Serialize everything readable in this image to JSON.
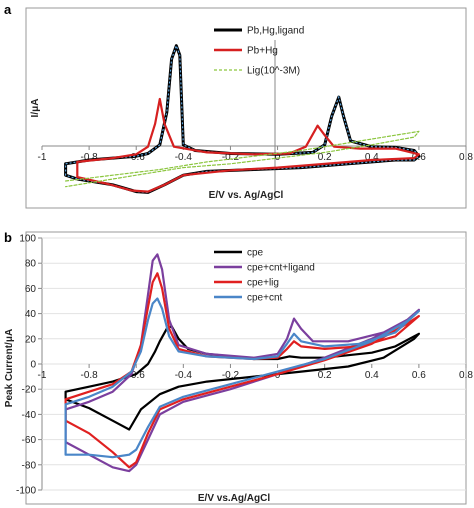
{
  "figure": {
    "panel_a_letter": "a",
    "panel_b_letter": "b"
  },
  "chart_data": [
    {
      "type": "line",
      "panel": "a",
      "xlabel": "E/V vs. Ag/AgCl",
      "ylabel": "I/μA",
      "xlim": [
        -1,
        0.8
      ],
      "xticks": [
        -1,
        -0.8,
        -0.6,
        -0.4,
        -0.2,
        0,
        0.2,
        0.4,
        0.6,
        0.8
      ],
      "xtick_labels": [
        "-1",
        "-0.8",
        "-0.6",
        "-0.4",
        "-0.2",
        "0",
        "0.2",
        "0.4",
        "0.6",
        "0.8"
      ],
      "y_tick_labels_shown": false,
      "ylim": [
        -1.1,
        3.1
      ],
      "legend_position": "top-right",
      "series": [
        {
          "name": "Pb,Hg,ligand",
          "color": "#000000",
          "points": [
            [
              -0.9,
              -0.15
            ],
            [
              -0.8,
              -0.05
            ],
            [
              -0.7,
              0.0
            ],
            [
              -0.6,
              0.05
            ],
            [
              -0.55,
              0.12
            ],
            [
              -0.5,
              0.35
            ],
            [
              -0.47,
              1.2
            ],
            [
              -0.45,
              2.6
            ],
            [
              -0.43,
              2.95
            ],
            [
              -0.415,
              2.7
            ],
            [
              -0.4,
              0.35
            ],
            [
              -0.35,
              0.2
            ],
            [
              -0.2,
              0.12
            ],
            [
              0.0,
              0.1
            ],
            [
              0.15,
              0.15
            ],
            [
              0.2,
              0.35
            ],
            [
              0.23,
              1.1
            ],
            [
              0.26,
              1.6
            ],
            [
              0.28,
              1.1
            ],
            [
              0.31,
              0.45
            ],
            [
              0.4,
              0.3
            ],
            [
              0.5,
              0.28
            ],
            [
              0.58,
              0.2
            ],
            [
              0.6,
              0.05
            ],
            [
              0.58,
              -0.05
            ],
            [
              0.5,
              -0.05
            ],
            [
              0.3,
              -0.15
            ],
            [
              0.1,
              -0.25
            ],
            [
              -0.1,
              -0.3
            ],
            [
              -0.3,
              -0.35
            ],
            [
              -0.4,
              -0.45
            ],
            [
              -0.48,
              -0.7
            ],
            [
              -0.55,
              -0.9
            ],
            [
              -0.6,
              -0.88
            ],
            [
              -0.7,
              -0.7
            ],
            [
              -0.85,
              -0.55
            ],
            [
              -0.9,
              -0.45
            ],
            [
              -0.9,
              -0.15
            ]
          ]
        },
        {
          "name": "Pb+Hg",
          "color": "#d62020",
          "points": [
            [
              -0.85,
              -0.1
            ],
            [
              -0.7,
              0.0
            ],
            [
              -0.6,
              0.1
            ],
            [
              -0.55,
              0.3
            ],
            [
              -0.52,
              0.9
            ],
            [
              -0.5,
              1.55
            ],
            [
              -0.48,
              0.9
            ],
            [
              -0.44,
              0.3
            ],
            [
              -0.3,
              0.15
            ],
            [
              -0.1,
              0.1
            ],
            [
              0.05,
              0.12
            ],
            [
              0.12,
              0.3
            ],
            [
              0.17,
              0.85
            ],
            [
              0.2,
              0.6
            ],
            [
              0.24,
              0.3
            ],
            [
              0.35,
              0.25
            ],
            [
              0.5,
              0.25
            ],
            [
              0.6,
              0.1
            ],
            [
              0.58,
              0.0
            ],
            [
              0.4,
              -0.05
            ],
            [
              0.2,
              -0.15
            ],
            [
              0.0,
              -0.25
            ],
            [
              -0.2,
              -0.32
            ],
            [
              -0.4,
              -0.45
            ],
            [
              -0.48,
              -0.7
            ],
            [
              -0.55,
              -0.88
            ],
            [
              -0.62,
              -0.85
            ],
            [
              -0.72,
              -0.68
            ],
            [
              -0.85,
              -0.5
            ],
            [
              -0.85,
              -0.1
            ]
          ]
        },
        {
          "name": "Lig(10^-3M)",
          "color": "#8cc63f",
          "points": [
            [
              -0.9,
              -0.6
            ],
            [
              -0.7,
              -0.45
            ],
            [
              -0.5,
              -0.3
            ],
            [
              -0.3,
              -0.1
            ],
            [
              -0.1,
              0.05
            ],
            [
              0.1,
              0.2
            ],
            [
              0.3,
              0.4
            ],
            [
              0.5,
              0.6
            ],
            [
              0.6,
              0.7
            ],
            [
              0.58,
              0.55
            ],
            [
              0.4,
              0.35
            ],
            [
              0.2,
              0.15
            ],
            [
              0.0,
              0.0
            ],
            [
              -0.2,
              -0.15
            ],
            [
              -0.4,
              -0.25
            ],
            [
              -0.6,
              -0.45
            ],
            [
              -0.9,
              -0.75
            ]
          ]
        }
      ]
    },
    {
      "type": "line",
      "panel": "b",
      "xlabel": "E/V vs.Ag/AgCl",
      "ylabel": "Peak Current/μA",
      "xlim": [
        -1,
        0.8
      ],
      "ylim": [
        -100,
        100
      ],
      "xticks": [
        -1,
        -0.8,
        -0.6,
        -0.4,
        -0.2,
        0,
        0.2,
        0.4,
        0.6,
        0.8
      ],
      "xtick_labels": [
        "-1",
        "-0.8",
        "-0.6",
        "-0.4",
        "-0.2",
        "0",
        "0.2",
        "0.4",
        "0.6",
        "0.8"
      ],
      "yticks": [
        -100,
        -80,
        -60,
        -40,
        -20,
        0,
        20,
        40,
        60,
        80,
        100
      ],
      "ytick_labels": [
        "-100",
        "-80",
        "-60",
        "-40",
        "-20",
        "0",
        "20",
        "40",
        "60",
        "80",
        "100"
      ],
      "legend_position": "top-right",
      "series": [
        {
          "name": "cpe",
          "color": "#000000",
          "points": [
            [
              -0.9,
              -22
            ],
            [
              -0.8,
              -18
            ],
            [
              -0.7,
              -14
            ],
            [
              -0.6,
              -8
            ],
            [
              -0.55,
              0
            ],
            [
              -0.52,
              10
            ],
            [
              -0.5,
              18
            ],
            [
              -0.47,
              28
            ],
            [
              -0.45,
              30
            ],
            [
              -0.42,
              20
            ],
            [
              -0.38,
              12
            ],
            [
              -0.3,
              8
            ],
            [
              -0.1,
              4
            ],
            [
              0.0,
              4
            ],
            [
              0.05,
              6
            ],
            [
              0.1,
              5
            ],
            [
              0.2,
              5
            ],
            [
              0.4,
              9
            ],
            [
              0.5,
              14
            ],
            [
              0.6,
              24
            ],
            [
              0.58,
              20
            ],
            [
              0.45,
              5
            ],
            [
              0.3,
              -2
            ],
            [
              0.1,
              -6
            ],
            [
              -0.1,
              -10
            ],
            [
              -0.3,
              -14
            ],
            [
              -0.42,
              -18
            ],
            [
              -0.5,
              -24
            ],
            [
              -0.58,
              -36
            ],
            [
              -0.63,
              -52
            ],
            [
              -0.7,
              -45
            ],
            [
              -0.8,
              -35
            ],
            [
              -0.9,
              -28
            ],
            [
              -0.9,
              -22
            ]
          ]
        },
        {
          "name": "cpe+cnt+ligand",
          "color": "#7b3f9e",
          "points": [
            [
              -0.9,
              -36
            ],
            [
              -0.8,
              -30
            ],
            [
              -0.7,
              -22
            ],
            [
              -0.62,
              -8
            ],
            [
              -0.58,
              15
            ],
            [
              -0.55,
              55
            ],
            [
              -0.53,
              82
            ],
            [
              -0.51,
              87
            ],
            [
              -0.49,
              75
            ],
            [
              -0.46,
              35
            ],
            [
              -0.42,
              15
            ],
            [
              -0.3,
              8
            ],
            [
              -0.1,
              5
            ],
            [
              0.0,
              8
            ],
            [
              0.04,
              20
            ],
            [
              0.07,
              36
            ],
            [
              0.1,
              28
            ],
            [
              0.15,
              18
            ],
            [
              0.3,
              18
            ],
            [
              0.45,
              25
            ],
            [
              0.55,
              35
            ],
            [
              0.6,
              43
            ],
            [
              0.55,
              35
            ],
            [
              0.4,
              20
            ],
            [
              0.2,
              5
            ],
            [
              0.0,
              -8
            ],
            [
              -0.2,
              -20
            ],
            [
              -0.4,
              -30
            ],
            [
              -0.5,
              -40
            ],
            [
              -0.55,
              -60
            ],
            [
              -0.6,
              -80
            ],
            [
              -0.63,
              -85
            ],
            [
              -0.7,
              -82
            ],
            [
              -0.8,
              -72
            ],
            [
              -0.9,
              -62
            ],
            [
              -0.9,
              -36
            ]
          ]
        },
        {
          "name": "cpe+lig",
          "color": "#e02020",
          "points": [
            [
              -0.9,
              -28
            ],
            [
              -0.8,
              -22
            ],
            [
              -0.7,
              -16
            ],
            [
              -0.62,
              -6
            ],
            [
              -0.58,
              15
            ],
            [
              -0.55,
              45
            ],
            [
              -0.53,
              65
            ],
            [
              -0.51,
              72
            ],
            [
              -0.49,
              60
            ],
            [
              -0.46,
              28
            ],
            [
              -0.42,
              12
            ],
            [
              -0.3,
              6
            ],
            [
              -0.1,
              4
            ],
            [
              0.0,
              5
            ],
            [
              0.04,
              12
            ],
            [
              0.07,
              18
            ],
            [
              0.1,
              14
            ],
            [
              0.2,
              12
            ],
            [
              0.35,
              14
            ],
            [
              0.5,
              22
            ],
            [
              0.6,
              38
            ],
            [
              0.55,
              32
            ],
            [
              0.4,
              16
            ],
            [
              0.2,
              3
            ],
            [
              0.0,
              -8
            ],
            [
              -0.2,
              -18
            ],
            [
              -0.4,
              -28
            ],
            [
              -0.5,
              -36
            ],
            [
              -0.55,
              -55
            ],
            [
              -0.6,
              -78
            ],
            [
              -0.63,
              -82
            ],
            [
              -0.7,
              -70
            ],
            [
              -0.8,
              -55
            ],
            [
              -0.9,
              -45
            ],
            [
              -0.9,
              -28
            ]
          ]
        },
        {
          "name": "cpe+cnt",
          "color": "#4a86c8",
          "points": [
            [
              -0.9,
              -32
            ],
            [
              -0.8,
              -26
            ],
            [
              -0.7,
              -18
            ],
            [
              -0.62,
              -6
            ],
            [
              -0.58,
              10
            ],
            [
              -0.55,
              35
            ],
            [
              -0.53,
              48
            ],
            [
              -0.51,
              52
            ],
            [
              -0.49,
              44
            ],
            [
              -0.46,
              22
            ],
            [
              -0.42,
              10
            ],
            [
              -0.3,
              6
            ],
            [
              -0.1,
              4
            ],
            [
              0.0,
              6
            ],
            [
              0.04,
              16
            ],
            [
              0.07,
              24
            ],
            [
              0.1,
              18
            ],
            [
              0.2,
              14
            ],
            [
              0.35,
              16
            ],
            [
              0.5,
              25
            ],
            [
              0.6,
              42
            ],
            [
              0.55,
              34
            ],
            [
              0.4,
              18
            ],
            [
              0.2,
              4
            ],
            [
              0.0,
              -6
            ],
            [
              -0.2,
              -16
            ],
            [
              -0.4,
              -26
            ],
            [
              -0.5,
              -34
            ],
            [
              -0.55,
              -50
            ],
            [
              -0.6,
              -68
            ],
            [
              -0.63,
              -72
            ],
            [
              -0.7,
              -74
            ],
            [
              -0.8,
              -72
            ],
            [
              -0.9,
              -72
            ],
            [
              -0.9,
              -32
            ]
          ]
        }
      ]
    }
  ]
}
